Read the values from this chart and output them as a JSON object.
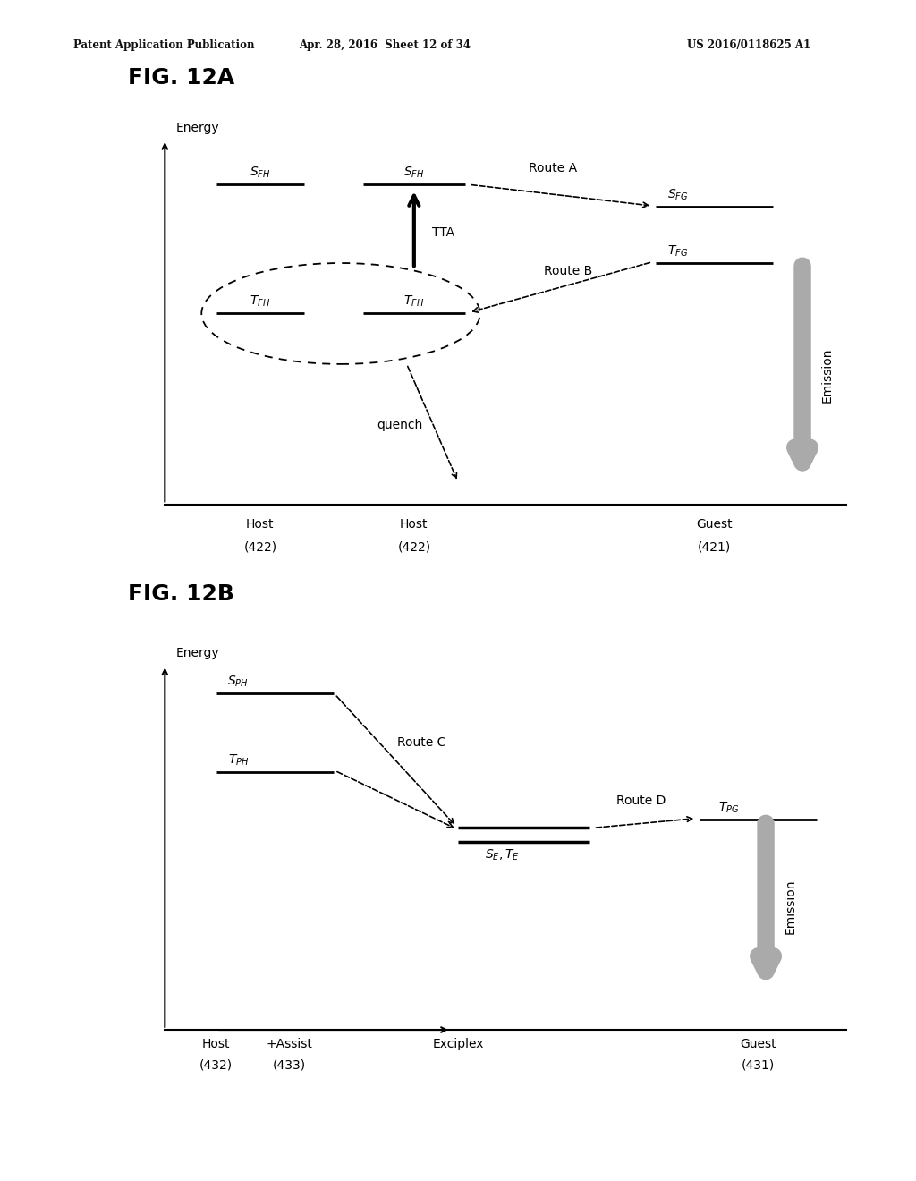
{
  "bg_color": "#ffffff",
  "header_text_left": "Patent Application Publication",
  "header_text_mid": "Apr. 28, 2016  Sheet 12 of 34",
  "header_text_right": "US 2016/0118625 A1",
  "fig12a_title": "FIG. 12A",
  "fig12b_title": "FIG. 12B",
  "gray_color": "#aaaaaa",
  "black": "#000000",
  "line_lw": 2.0,
  "dashed_lw": 1.2,
  "axis_lw": 1.5
}
